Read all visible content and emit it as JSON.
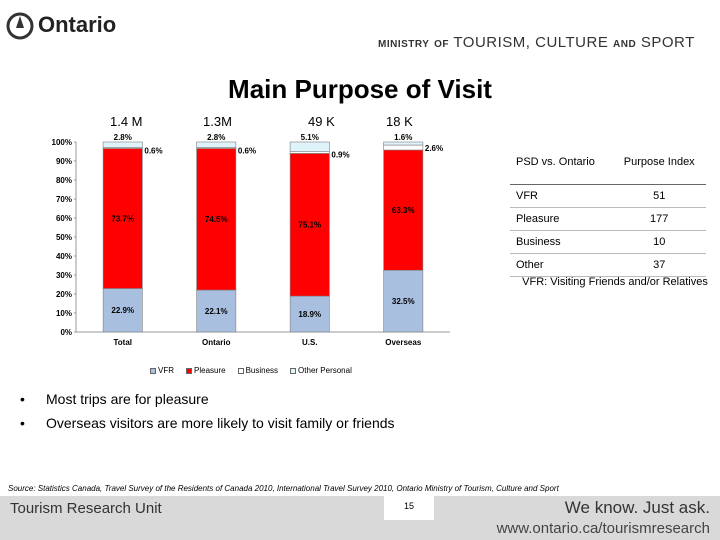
{
  "header": {
    "logo_text": "Ontario",
    "ministry": {
      "w1": "MINISTRY",
      "w2": "OF",
      "w3": "TOURISM,",
      "w4": "CULTURE",
      "w5": "AND",
      "w6": "SPORT"
    }
  },
  "title": "Main Purpose of Visit",
  "column_heads": [
    "1.4 M",
    "1.3M",
    "49 K",
    "18 K"
  ],
  "chart_data": {
    "type": "bar",
    "stacked": true,
    "percent_stacked": true,
    "categories": [
      "Total",
      "Ontario",
      "U.S.",
      "Overseas"
    ],
    "yticks": [
      "0%",
      "10%",
      "20%",
      "30%",
      "40%",
      "50%",
      "60%",
      "70%",
      "80%",
      "90%",
      "100%"
    ],
    "ylim": [
      0,
      100
    ],
    "series": [
      {
        "name": "VFR",
        "color": "#a9bfe0",
        "values": [
          22.9,
          22.1,
          18.9,
          32.5
        ],
        "labels": [
          "22.9%",
          "22.1%",
          "18.9%",
          "32.5%"
        ]
      },
      {
        "name": "Pleasure",
        "color": "#ff0000",
        "values": [
          73.7,
          74.5,
          75.1,
          63.3
        ],
        "labels": [
          "73.7%",
          "74.5%",
          "75.1%",
          "63.3%"
        ]
      },
      {
        "name": "Business",
        "color": "#ffffff",
        "values": [
          0.6,
          0.6,
          0.9,
          2.6
        ],
        "labels": [
          "0.6%",
          "0.6%",
          "0.9%",
          "2.6%"
        ]
      },
      {
        "name": "Other Personal",
        "color": "#dff3fb",
        "values": [
          2.8,
          2.8,
          5.1,
          1.6
        ],
        "labels": [
          "2.8%",
          "2.8%",
          "5.1%",
          "1.6%"
        ]
      }
    ],
    "legend_position": "bottom"
  },
  "index_table": {
    "header": [
      "PSD vs. Ontario",
      "Purpose Index"
    ],
    "rows": [
      [
        "VFR",
        "51"
      ],
      [
        "Pleasure",
        "177"
      ],
      [
        "Business",
        "10"
      ],
      [
        "Other",
        "37"
      ]
    ],
    "note": "VFR: Visiting Friends and/or Relatives"
  },
  "bullets": [
    "Most trips are for pleasure",
    "Overseas visitors are more likely to visit family or friends"
  ],
  "bullet_glyph": "•",
  "source": "Source: Statistics Canada, Travel Survey of the Residents of Canada 2010, International Travel Survey 2010, Ontario Ministry of Tourism, Culture and Sport",
  "footer": {
    "unit": "Tourism Research Unit",
    "tagline": "We know. Just ask.",
    "url": "www.ontario.ca/tourismresearch",
    "page": "15"
  },
  "colors": {
    "footer_bg": "#d9d9d9",
    "pleasure": "#ff0000",
    "vfr": "#a9bfe0"
  }
}
